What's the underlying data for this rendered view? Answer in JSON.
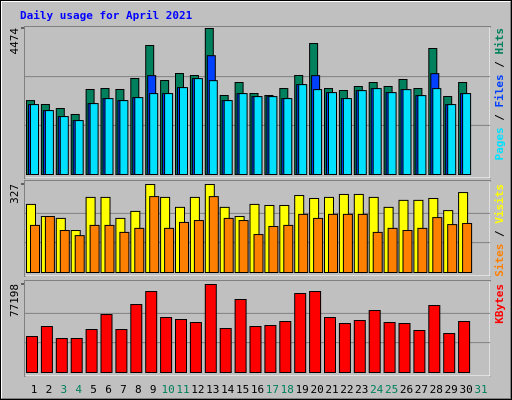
{
  "chart_data": {
    "type": "bar",
    "title": "Daily usage for April 2021",
    "title_color": "#0000ff",
    "legend_separator": " / ",
    "categories": [
      "1",
      "2",
      "3",
      "4",
      "5",
      "6",
      "7",
      "8",
      "9",
      "10",
      "11",
      "12",
      "13",
      "14",
      "15",
      "16",
      "17",
      "18",
      "19",
      "20",
      "21",
      "22",
      "23",
      "24",
      "25",
      "26",
      "27",
      "28",
      "29",
      "30",
      "31"
    ],
    "category_colors": [
      "#000000",
      "#000000",
      "#00805c",
      "#00805c",
      "#000000",
      "#000000",
      "#000000",
      "#000000",
      "#000000",
      "#00805c",
      "#00805c",
      "#000000",
      "#000000",
      "#000000",
      "#000000",
      "#000000",
      "#00805c",
      "#00805c",
      "#000000",
      "#000000",
      "#000000",
      "#000000",
      "#000000",
      "#00805c",
      "#00805c",
      "#000000",
      "#000000",
      "#000000",
      "#000000",
      "#000000",
      "#00805c"
    ],
    "grid": true,
    "panels": [
      {
        "ylim": [
          0,
          4474
        ],
        "yticks": [
          4474
        ],
        "series": [
          {
            "name": "Hits",
            "color": "#00805c",
            "values": [
              2265,
              2145,
              2022,
              1839,
              2605,
              2635,
              2605,
              2942,
              3953,
              2880,
              3095,
              3034,
              4474,
              2421,
              2819,
              2482,
              2421,
              2635,
              3034,
              4014,
              2635,
              2574,
              2697,
              2819,
              2697,
              2911,
              2635,
              3861,
              2390,
              2819,
              null
            ]
          },
          {
            "name": "Files",
            "color": "#0040ff",
            "values": [
              2142,
              1958,
              1775,
              1652,
              2173,
              2326,
              2264,
              2356,
              3029,
              2479,
              2662,
              2938,
              3641,
              2264,
              2479,
              2387,
              2387,
              2326,
              2754,
              3029,
              2509,
              2326,
              2570,
              2632,
              2509,
              2601,
              2417,
              3091,
              2142,
              2479,
              null
            ]
          },
          {
            "name": "Pages",
            "color": "#00e0ff",
            "values": [
              2142,
              1958,
              1775,
              1652,
              2173,
              2326,
              2264,
              2356,
              2479,
              2479,
              2662,
              2938,
              2876,
              2264,
              2479,
              2387,
              2387,
              2326,
              2754,
              2601,
              2509,
              2326,
              2570,
              2632,
              2509,
              2601,
              2417,
              2632,
              2142,
              2479,
              null
            ]
          }
        ]
      },
      {
        "ylim": [
          0,
          327
        ],
        "yticks": [
          327
        ],
        "series": [
          {
            "name": "Visits",
            "color": "#ffff00",
            "values": [
              253,
              208,
              201,
              156,
              279,
              279,
              201,
              227,
              327,
              279,
              242,
              279,
              327,
              242,
              208,
              253,
              249,
              249,
              286,
              275,
              279,
              290,
              290,
              279,
              242,
              268,
              268,
              275,
              230,
              297,
              null
            ]
          },
          {
            "name": "Sites",
            "color": "#ff8000",
            "values": [
              175,
              208,
              156,
              137,
              175,
              175,
              149,
              164,
              282,
              164,
              186,
              193,
              282,
              201,
              193,
              141,
              171,
              175,
              216,
              201,
              216,
              216,
              216,
              149,
              164,
              156,
              164,
              204,
              178,
              182,
              null
            ]
          }
        ]
      },
      {
        "ylim": [
          0,
          77198
        ],
        "yticks": [
          77198
        ],
        "series": [
          {
            "name": "KBytes",
            "color": "#ff0000",
            "values": [
              31572,
              40342,
              29818,
              29818,
              37711,
              50866,
              37711,
              59636,
              71037,
              48235,
              46481,
              43850,
              77198,
              38588,
              64021,
              40342,
              41219,
              44727,
              69283,
              71037,
              48235,
              42973,
              45604,
              54374,
              43850,
              42973,
              36834,
              58759,
              34203,
              44727,
              null
            ]
          }
        ]
      }
    ]
  }
}
